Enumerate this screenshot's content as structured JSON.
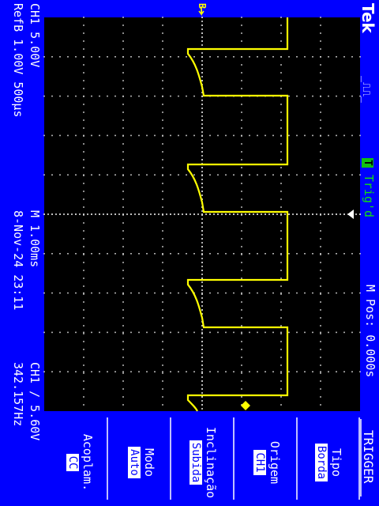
{
  "header": {
    "brand": "Tek",
    "trigger_status_icon": "T",
    "trigger_status": "Trig'd",
    "horizontal_position": "M Pos: 0.000s"
  },
  "readout": {
    "ch1_scale": "CH1  5.00V",
    "ref_scale": "RefB 1.00V 500µs",
    "timebase": "M 1.00ms",
    "date_time": "8-Nov-24 23:11",
    "trigger_level": "CH1 ∕ 5.60V",
    "frequency": "342.157Hz"
  },
  "markers": {
    "ref_marker": "B→"
  },
  "menu": {
    "title": "TRIGGER",
    "items": [
      {
        "label": "Tipo",
        "value": "Borda"
      },
      {
        "label": "Origem",
        "value": "CH1"
      },
      {
        "label": "Inclinação",
        "value": "Subida"
      },
      {
        "label": "Modo",
        "value": "Auto"
      },
      {
        "label": "Acoplam.",
        "value": "CC"
      }
    ]
  },
  "colors": {
    "background": "#0000ff",
    "screen": "#000000",
    "trace": "#ffff00",
    "graticule": "#ffffff",
    "trigger_indicator": "#10c010"
  }
}
